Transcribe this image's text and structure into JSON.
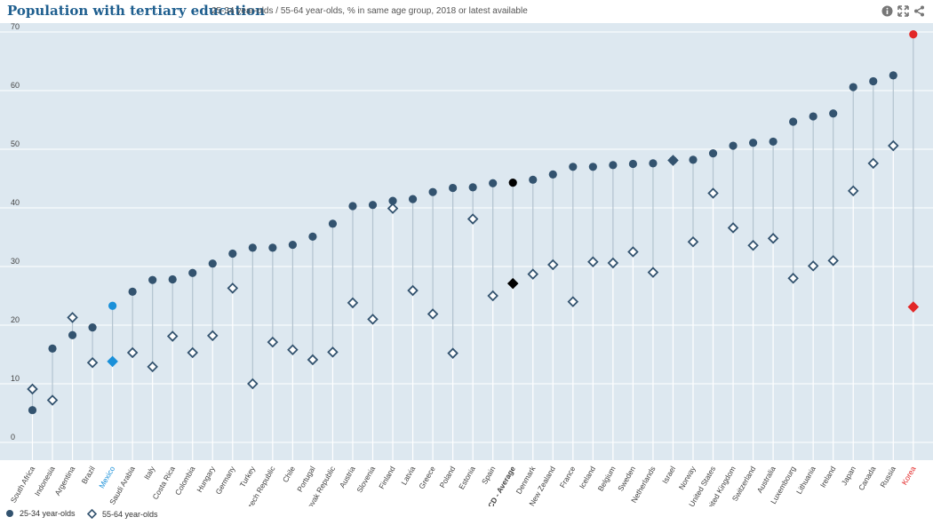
{
  "header": {
    "title": "Population with tertiary education",
    "subtitle": "25-34 year-olds / 55-64 year-olds, % in same age group, 2018 or latest available",
    "icons": [
      "info-icon",
      "expand-icon",
      "share-icon"
    ]
  },
  "legend": {
    "series1": "25-34 year-olds",
    "series2": "55-64 year-olds"
  },
  "colors": {
    "plot_bg": "#dde8f0",
    "series_dark": "#33536f",
    "average": "#000000",
    "highlight_mexico": "#1a90d9",
    "highlight_korea": "#e22727"
  },
  "chart_data": {
    "type": "scatter",
    "ylim": [
      0,
      70
    ],
    "yticks": [
      0,
      10,
      20,
      30,
      40,
      50,
      60,
      70
    ],
    "grid": true,
    "legend_position": "bottom-left",
    "categories": [
      "South Africa",
      "Indonesia",
      "Argentina",
      "Brazil",
      "Mexico",
      "Saudi Arabia",
      "Italy",
      "Costa Rica",
      "Colombia",
      "Hungary",
      "Germany",
      "Turkey",
      "Czech Republic",
      "Chile",
      "Portugal",
      "Slovak Republic",
      "Austria",
      "Slovenia",
      "Finland",
      "Latvia",
      "Greece",
      "Poland",
      "Estonia",
      "Spain",
      "OECD - Average",
      "Denmark",
      "New Zealand",
      "France",
      "Iceland",
      "Belgium",
      "Sweden",
      "Netherlands",
      "Israel",
      "Norway",
      "United States",
      "United Kingdom",
      "Switzerland",
      "Australia",
      "Luxembourg",
      "Lithuania",
      "Ireland",
      "Japan",
      "Canada",
      "Russia",
      "Korea"
    ],
    "highlights": {
      "Mexico": "#1a90d9",
      "Korea": "#e22727",
      "OECD - Average": "#000000"
    },
    "series": [
      {
        "name": "25-34 year-olds",
        "marker": "circle",
        "values": [
          5.5,
          16,
          18.3,
          19.6,
          23.3,
          25.7,
          27.7,
          27.8,
          28.9,
          30.5,
          32.2,
          33.2,
          33.2,
          33.7,
          35.1,
          37.3,
          40.3,
          40.5,
          41.2,
          41.5,
          42.7,
          43.4,
          43.5,
          44.2,
          44.3,
          44.8,
          45.7,
          47,
          47,
          47.3,
          47.5,
          47.6,
          48.1,
          48.2,
          49.3,
          50.6,
          51.1,
          51.3,
          54.7,
          55.6,
          56.1,
          60.6,
          61.6,
          62.6,
          69.6
        ]
      },
      {
        "name": "55-64 year-olds",
        "marker": "diamond-open",
        "values": [
          9.1,
          7.2,
          21.3,
          13.6,
          13.8,
          15.3,
          12.9,
          18.1,
          15.3,
          18.2,
          26.3,
          10,
          17.1,
          15.8,
          14.1,
          15.4,
          23.8,
          21,
          39.9,
          25.9,
          21.9,
          15.2,
          38.1,
          25,
          27.1,
          28.7,
          30.3,
          24,
          30.8,
          30.6,
          32.5,
          29,
          48.1,
          34.2,
          42.5,
          36.6,
          33.6,
          34.8,
          28,
          30.1,
          31,
          42.9,
          47.6,
          50.6,
          23.1
        ]
      }
    ]
  }
}
